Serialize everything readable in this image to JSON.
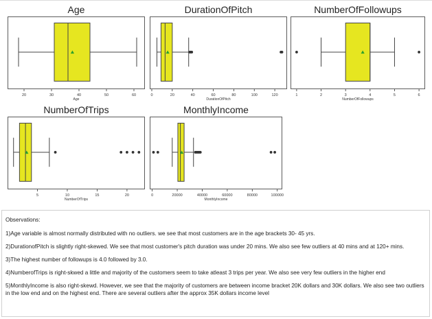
{
  "chart_data": [
    {
      "type": "box",
      "title": "Age",
      "xlabel": "Age",
      "xlim": [
        14,
        64
      ],
      "ticks": [
        20,
        30,
        40,
        50,
        60
      ],
      "box": {
        "whisker_low": 18,
        "q1": 31,
        "median": 36,
        "q3": 44,
        "whisker_high": 61,
        "mean": 37.6
      },
      "outliers": [],
      "color": "#e6e620"
    },
    {
      "type": "box",
      "title": "DurationOfPitch",
      "xlabel": "DurationOfPitch",
      "xlim": [
        -2,
        132
      ],
      "ticks": [
        0,
        20,
        40,
        60,
        80,
        100,
        120
      ],
      "box": {
        "whisker_low": 5,
        "q1": 9,
        "median": 13,
        "q3": 20,
        "whisker_high": 36,
        "mean": 15.5
      },
      "outliers": [
        37,
        38,
        39,
        126,
        127
      ],
      "color": "#e6e620"
    },
    {
      "type": "box",
      "title": "NumberOfFollowups",
      "xlabel": "NumberOfFollowups",
      "xlim": [
        0.75,
        6.25
      ],
      "ticks": [
        1,
        2,
        3,
        4,
        5,
        6
      ],
      "box": {
        "whisker_low": 2,
        "q1": 3,
        "median": 4,
        "q3": 4,
        "whisker_high": 5,
        "mean": 3.7
      },
      "outliers": [
        1,
        6
      ],
      "color": "#e6e620"
    },
    {
      "type": "box",
      "title": "NumberOfTrips",
      "xlabel": "NumberOfTrips",
      "xlim": [
        0,
        23
      ],
      "ticks": [
        5,
        10,
        15,
        20
      ],
      "box": {
        "whisker_low": 1,
        "q1": 2,
        "median": 3,
        "q3": 4,
        "whisker_high": 7,
        "mean": 3.2
      },
      "outliers": [
        8,
        19,
        20,
        21,
        22
      ],
      "color": "#e6e620"
    },
    {
      "type": "box",
      "title": "MonthlyIncome",
      "xlabel": "MonthlyIncome",
      "xlim": [
        -2000,
        104000
      ],
      "ticks": [
        0,
        20000,
        40000,
        60000,
        80000,
        100000
      ],
      "box": {
        "whisker_low": 16000,
        "q1": 20500,
        "median": 22500,
        "q3": 25500,
        "whisker_high": 33000,
        "mean": 23600
      },
      "outliers": [
        1000,
        4500,
        34500,
        35500,
        36500,
        37500,
        38500,
        95000,
        98000
      ],
      "color": "#e6e620"
    }
  ],
  "observations": {
    "heading": "Observations:",
    "items": [
      "1)Age variable is almost normally distributed with no outliers. we see that most customers are in the age brackets 30- 45 yrs.",
      "2)DurationofPitch is slightly right-skewed. We see that most customer's pitch duration was under 20 mins. We also see few outliers at 40 mins and at 120+ mins.",
      "3)The highest number of followups is 4.0 followed by 3.0.",
      "4)NumberofTrips is right-skwed a little and majority of the customers seem to take atleast 3 trips per year. We also see very few outliers in the higher end",
      "5)MonthlyIncome is also right-skewd. However, we see that the majority of customers are between income bracket 20K dollars and 30K dollars. We also see two outliers in the low end and on the highest end. There are several outliers after the approx 35K dollars income level"
    ]
  }
}
